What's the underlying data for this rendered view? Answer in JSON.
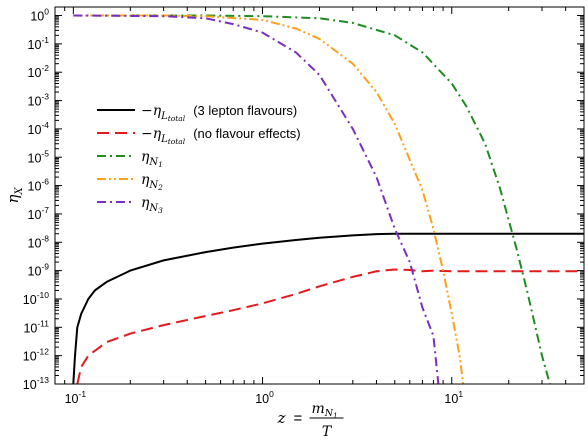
{
  "chart_data": {
    "type": "line",
    "x_scale": "log",
    "y_scale": "log",
    "xlim": [
      0.08,
      50
    ],
    "ylim": [
      1e-13,
      2
    ],
    "grid": false,
    "legend_position": "center-left",
    "x_ticks": [
      {
        "value": 0.1,
        "base": "10",
        "exp": "-1"
      },
      {
        "value": 1,
        "base": "10",
        "exp": "0"
      },
      {
        "value": 10,
        "base": "10",
        "exp": "1"
      }
    ],
    "y_ticks": [
      {
        "value": 1,
        "base": "10",
        "exp": "0"
      },
      {
        "value": 0.1,
        "base": "10",
        "exp": "-1"
      },
      {
        "value": 0.01,
        "base": "10",
        "exp": "-2"
      },
      {
        "value": 0.001,
        "base": "10",
        "exp": "-3"
      },
      {
        "value": 0.0001,
        "base": "10",
        "exp": "-4"
      },
      {
        "value": 1e-05,
        "base": "10",
        "exp": "-5"
      },
      {
        "value": 1e-06,
        "base": "10",
        "exp": "-6"
      },
      {
        "value": 1e-07,
        "base": "10",
        "exp": "-7"
      },
      {
        "value": 1e-08,
        "base": "10",
        "exp": "-8"
      },
      {
        "value": 1e-09,
        "base": "10",
        "exp": "-9"
      },
      {
        "value": 1e-10,
        "base": "10",
        "exp": "-10"
      },
      {
        "value": 1e-11,
        "base": "10",
        "exp": "-11"
      },
      {
        "value": 1e-12,
        "base": "10",
        "exp": "-12"
      },
      {
        "value": 1e-13,
        "base": "10",
        "exp": "-13"
      }
    ],
    "xlabel": {
      "lhs": "z",
      "eq": "=",
      "num": "m",
      "num_sub": "N",
      "num_subsub": "1",
      "den": "T"
    },
    "ylabel": {
      "main": "η",
      "sub": "X"
    },
    "series": [
      {
        "name": "−η",
        "name_sub": "L",
        "name_subsub": "total",
        "name_note": "(3 lepton flavours)",
        "color": "#000000",
        "dash": "",
        "points": [
          [
            0.1,
            1e-13
          ],
          [
            0.102,
            1e-12
          ],
          [
            0.105,
            1e-11
          ],
          [
            0.11,
            3e-11
          ],
          [
            0.12,
            1e-10
          ],
          [
            0.13,
            2e-10
          ],
          [
            0.15,
            4e-10
          ],
          [
            0.2,
            1e-09
          ],
          [
            0.3,
            2.3e-09
          ],
          [
            0.5,
            4.5e-09
          ],
          [
            0.7,
            6.5e-09
          ],
          [
            1,
            9e-09
          ],
          [
            1.5,
            1.2e-08
          ],
          [
            2,
            1.45e-08
          ],
          [
            3,
            1.75e-08
          ],
          [
            4,
            1.95e-08
          ],
          [
            5,
            2e-08
          ],
          [
            7,
            2e-08
          ],
          [
            10,
            2e-08
          ],
          [
            20,
            2e-08
          ],
          [
            50,
            2e-08
          ]
        ]
      },
      {
        "name": "−η",
        "name_sub": "L",
        "name_subsub": "total",
        "name_note": "(no flavour effects)",
        "color": "#e41a1c",
        "dash": "12,6",
        "points": [
          [
            0.105,
            1e-13
          ],
          [
            0.11,
            4e-13
          ],
          [
            0.12,
            1e-12
          ],
          [
            0.15,
            3e-12
          ],
          [
            0.2,
            6e-12
          ],
          [
            0.3,
            1.2e-11
          ],
          [
            0.5,
            2.5e-11
          ],
          [
            0.7,
            4e-11
          ],
          [
            1,
            7e-11
          ],
          [
            1.5,
            1.5e-10
          ],
          [
            2,
            2.8e-10
          ],
          [
            3,
            6e-10
          ],
          [
            4,
            9.5e-10
          ],
          [
            5,
            1.1e-09
          ],
          [
            6,
            1.05e-09
          ],
          [
            7,
            9.5e-10
          ],
          [
            8,
            1e-09
          ],
          [
            10,
            9.5e-10
          ],
          [
            15,
            9.5e-10
          ],
          [
            20,
            9.5e-10
          ],
          [
            50,
            9.5e-10
          ]
        ]
      },
      {
        "name": "η",
        "name_sub": "N",
        "name_subsub": "1",
        "name_note": "",
        "color": "#1e8c1e",
        "dash": "9,4,2,4",
        "points": [
          [
            0.1,
            1
          ],
          [
            0.5,
            1
          ],
          [
            1,
            0.95
          ],
          [
            2,
            0.8
          ],
          [
            3,
            0.55
          ],
          [
            5,
            0.2
          ],
          [
            7,
            0.05
          ],
          [
            10,
            0.004
          ],
          [
            12,
            0.0006
          ],
          [
            15,
            3e-05
          ],
          [
            18,
            8e-07
          ],
          [
            20,
            6e-08
          ],
          [
            22,
            6e-09
          ],
          [
            25,
            2e-10
          ],
          [
            30,
            1e-12
          ],
          [
            33,
            1e-13
          ]
        ]
      },
      {
        "name": "η",
        "name_sub": "N",
        "name_subsub": "2",
        "name_note": "",
        "color": "#ff9f1a",
        "dash": "9,3,2,3,2,3",
        "points": [
          [
            0.1,
            1
          ],
          [
            0.3,
            1
          ],
          [
            0.5,
            0.95
          ],
          [
            1,
            0.7
          ],
          [
            1.5,
            0.35
          ],
          [
            2,
            0.15
          ],
          [
            3,
            0.02
          ],
          [
            4,
            0.002
          ],
          [
            5,
            0.00015
          ],
          [
            7,
            7e-07
          ],
          [
            8,
            3e-08
          ],
          [
            9,
            1e-09
          ],
          [
            10,
            3e-11
          ],
          [
            11,
            1e-12
          ],
          [
            11.5,
            1e-13
          ]
        ]
      },
      {
        "name": "η",
        "name_sub": "N",
        "name_subsub": "3",
        "name_note": "",
        "color": "#7b2fbe",
        "dash": "9,4,2,4",
        "points": [
          [
            0.1,
            1
          ],
          [
            0.3,
            0.95
          ],
          [
            0.5,
            0.8
          ],
          [
            0.7,
            0.5
          ],
          [
            1,
            0.25
          ],
          [
            1.5,
            0.05
          ],
          [
            2,
            0.008
          ],
          [
            3,
            0.0001
          ],
          [
            4,
            2e-06
          ],
          [
            5,
            3e-08
          ],
          [
            6,
            2e-09
          ],
          [
            7,
            5e-11
          ],
          [
            8,
            5e-12
          ],
          [
            8.5,
            1e-13
          ]
        ]
      }
    ]
  }
}
